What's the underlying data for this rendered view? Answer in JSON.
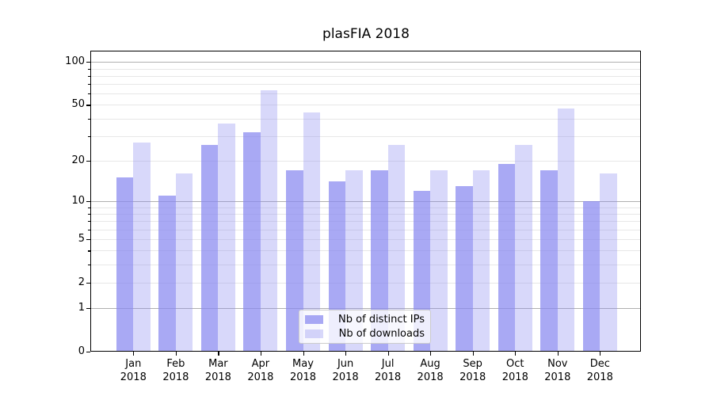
{
  "title": "plasFIA 2018",
  "chart_data": {
    "type": "bar",
    "title": "plasFIA 2018",
    "categories": [
      "Jan",
      "Feb",
      "Mar",
      "Apr",
      "May",
      "Jun",
      "Jul",
      "Aug",
      "Sep",
      "Oct",
      "Nov",
      "Dec"
    ],
    "x_year_label": "2018",
    "series": [
      {
        "name": "Nb of distinct IPs",
        "color": "rgba(136,136,240,0.72)",
        "values": [
          15,
          11,
          26,
          32,
          17,
          14,
          17,
          12,
          13,
          19,
          17,
          10
        ]
      },
      {
        "name": "Nb of downloads",
        "color": "rgba(136,136,240,0.33)",
        "values": [
          27,
          16,
          37,
          63,
          44,
          17,
          26,
          17,
          17,
          26,
          47,
          16
        ]
      }
    ],
    "xlabel": "",
    "ylabel": "",
    "yscale": "symlog (position = log10(1+value))",
    "ylim": [
      0,
      120
    ],
    "y_tick_values": [
      0,
      1,
      2,
      5,
      10,
      20,
      50,
      100
    ],
    "y_tick_labels": [
      "0",
      "1",
      "2",
      "5",
      "10",
      "20",
      "50",
      "100"
    ],
    "y_major_gridline_values": [
      1,
      10,
      100
    ],
    "y_minor_gridline_values": [
      2,
      3,
      4,
      5,
      6,
      7,
      8,
      9,
      20,
      30,
      40,
      50,
      60,
      70,
      80,
      90
    ],
    "grid": true,
    "legend_position": "lower center"
  },
  "legend": {
    "items": [
      {
        "label": "Nb of distinct IPs"
      },
      {
        "label": "Nb of downloads"
      }
    ]
  },
  "colors": {
    "bar_distinct_ips": "rgba(136,136,240,0.72)",
    "bar_downloads": "rgba(136,136,240,0.33)",
    "major_gridline": "#b0b0b0",
    "minor_gridline": "#e7e7e7",
    "axis": "#000000",
    "legend_border": "#cccccc",
    "background": "#ffffff"
  }
}
